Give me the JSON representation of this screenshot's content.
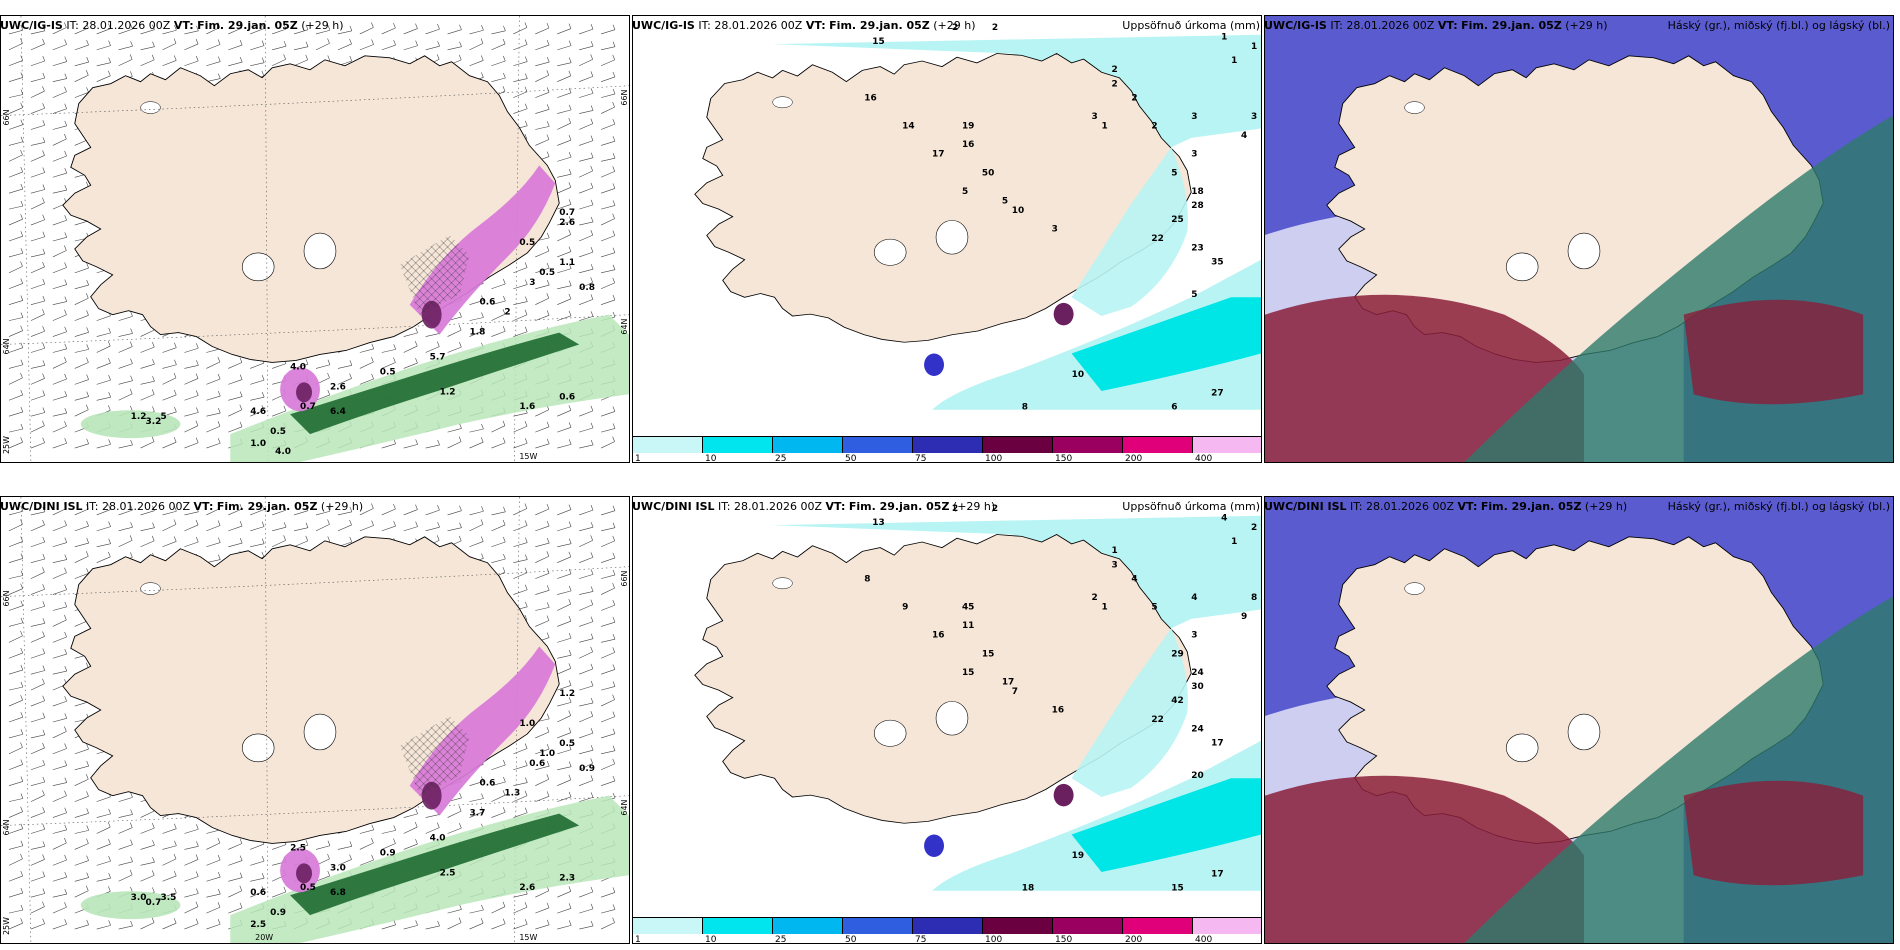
{
  "figure": {
    "rows": [
      {
        "model": "UWC/IG-IS",
        "panels": [
          {
            "id": "wind-precip-top",
            "model": "UWC/IG-IS",
            "it_label": "IT:",
            "it_value": "28.01.2026 00Z",
            "vt_label": "VT:",
            "vt_value": "Fim. 29.jan. 05Z",
            "lead": "(+29 h)",
            "right_title": "",
            "axis_labels": {
              "lat_top": "66N",
              "lat_mid": "64N",
              "lat_bot": "25W",
              "lon_bot": "15W",
              "lat_right_top": "66N",
              "lat_right_mid": "64N"
            },
            "precip_labels": [
              "0.7",
              "0.5",
              "1.1",
              "3",
              "2",
              "1.8",
              "5.7",
              "0.5",
              "2.6",
              "0.7",
              "0.5",
              "4.6",
              "4.0",
              "6.4",
              "1.2",
              "1.6",
              "0.6",
              "1.2",
              "3.2",
              "5",
              "0.6",
              "0.5",
              "0.8",
              "1.0",
              "4.0",
              "2.6"
            ]
          },
          {
            "id": "accum-precip-top",
            "model": "UWC/IG-IS",
            "it_label": "IT:",
            "it_value": "28.01.2026 00Z",
            "vt_label": "VT:",
            "vt_value": "Fim. 29.jan. 05Z",
            "lead": "(+29 h)",
            "right_title": "Uppsöfnuð úrkoma (mm)",
            "precip_labels": [
              "2",
              "2",
              "1",
              "1",
              "1",
              "2",
              "2",
              "2",
              "3",
              "1",
              "2",
              "3",
              "3",
              "4",
              "3",
              "5",
              "18",
              "28",
              "25",
              "22",
              "23",
              "35",
              "19",
              "16",
              "50",
              "10",
              "3",
              "5",
              "10",
              "8",
              "6",
              "27",
              "15",
              "16",
              "14",
              "17",
              "5",
              "5"
            ],
            "colorbar": [
              "1",
              "10",
              "25",
              "50",
              "75",
              "100",
              "150",
              "200",
              "400"
            ]
          },
          {
            "id": "cloud-top",
            "model": "UWC/IG-IS",
            "it_label": "IT:",
            "it_value": "28.01.2026 00Z",
            "vt_label": "VT:",
            "vt_value": "Fim. 29.jan. 05Z",
            "lead": "(+29 h)",
            "right_title": "Háský (gr.), miðský (fj.bl.) og lágský (bl.)"
          }
        ]
      },
      {
        "model": "UWC/DINI ISL",
        "panels": [
          {
            "id": "wind-precip-bottom",
            "model": "UWC/DINI ISL",
            "it_label": "IT:",
            "it_value": "28.01.2026 00Z",
            "vt_label": "VT:",
            "vt_value": "Fim. 29.jan. 05Z",
            "lead": "(+29 h)",
            "right_title": "",
            "axis_labels": {
              "lat_top": "66N",
              "lat_mid": "64N",
              "lat_bot": "25W",
              "lon_bot": "15W",
              "lon_bot2": "20W",
              "lat_right_top": "66N",
              "lat_right_mid": "64N"
            },
            "precip_labels": [
              "1.2",
              "1.0",
              "0.5",
              "0.6",
              "1.3",
              "3.7",
              "4.0",
              "0.9",
              "3.0",
              "0.5",
              "0.9",
              "0.6",
              "2.5",
              "6.8",
              "2.5",
              "2.6",
              "2.3",
              "3.0",
              "0.7",
              "3.5",
              "0.6",
              "1.0",
              "0.9",
              "2.5"
            ]
          },
          {
            "id": "accum-precip-bottom",
            "model": "UWC/DINI ISL",
            "it_label": "IT:",
            "it_value": "28.01.2026 00Z",
            "vt_label": "VT:",
            "vt_value": "Fim. 29.jan. 05Z",
            "lead": "(+29 h)",
            "right_title": "Uppsöfnuð úrkoma (mm)",
            "precip_labels": [
              "2",
              "2",
              "4",
              "2",
              "1",
              "1",
              "3",
              "4",
              "2",
              "1",
              "5",
              "4",
              "8",
              "9",
              "3",
              "29",
              "24",
              "30",
              "42",
              "22",
              "24",
              "17",
              "45",
              "11",
              "15",
              "7",
              "16",
              "20",
              "19",
              "18",
              "15",
              "17",
              "13",
              "8",
              "9",
              "16",
              "15",
              "17"
            ],
            "colorbar": [
              "1",
              "10",
              "25",
              "50",
              "75",
              "100",
              "150",
              "200",
              "400"
            ]
          },
          {
            "id": "cloud-bottom",
            "model": "UWC/DINI ISL",
            "it_label": "IT:",
            "it_value": "28.01.2026 00Z",
            "vt_label": "VT:",
            "vt_value": "Fim. 29.jan. 05Z",
            "lead": "(+29 h)",
            "right_title": "Háský (gr.), miðský (fj.bl.) og lágský (bl.)"
          }
        ]
      }
    ]
  },
  "colors": {
    "land": "#f5e6d8",
    "land_dark": "#eddcc8",
    "precip_cyan_light": "#b8f4f4",
    "precip_cyan": "#00e5e5",
    "green_light": "#b9e6b9",
    "green_dark": "#1e6b32",
    "magenta": "#d87ad8",
    "purple": "#6a1f5f",
    "high_cloud": "#2d7a6a",
    "mid_cloud": "#8a1e3a",
    "low_cloud": "#3e3ec8"
  }
}
